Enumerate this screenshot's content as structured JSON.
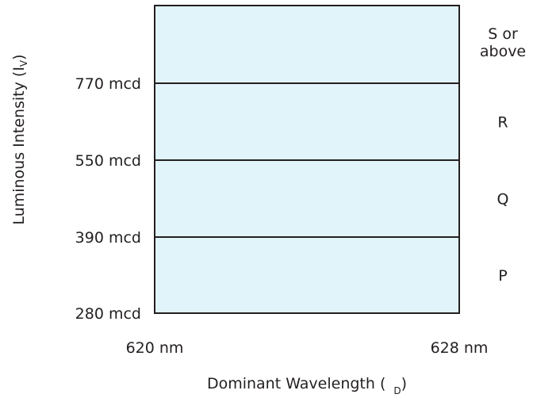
{
  "chart_data": {
    "type": "bin-chart",
    "title": "",
    "xlabel": {
      "prefix": "Dominant Wavelength (",
      "subscript": "D",
      "suffix": ")"
    },
    "ylabel": {
      "prefix": "Luminous Intensity (I",
      "subscript": "V",
      "suffix": ")"
    },
    "x_ticks": [
      {
        "value": 620,
        "label": "620 nm"
      },
      {
        "value": 628,
        "label": "628 nm"
      }
    ],
    "xlim": [
      620,
      628
    ],
    "y_ticks": [
      {
        "label": "280 mcd"
      },
      {
        "label": "390 mcd"
      },
      {
        "label": "550 mcd"
      },
      {
        "label": "770 mcd"
      }
    ],
    "bins": [
      {
        "name": "P",
        "from": "280 mcd",
        "to": "390 mcd"
      },
      {
        "name": "Q",
        "from": "390 mcd",
        "to": "550 mcd"
      },
      {
        "name": "R",
        "from": "550 mcd",
        "to": "770 mcd"
      },
      {
        "name": "S or above",
        "lines": [
          "S or",
          "above"
        ],
        "from": "770 mcd",
        "to": null
      }
    ],
    "fill_color": "#e1f4fa",
    "line_color": "#231f20",
    "grid": false,
    "legend": "none"
  }
}
